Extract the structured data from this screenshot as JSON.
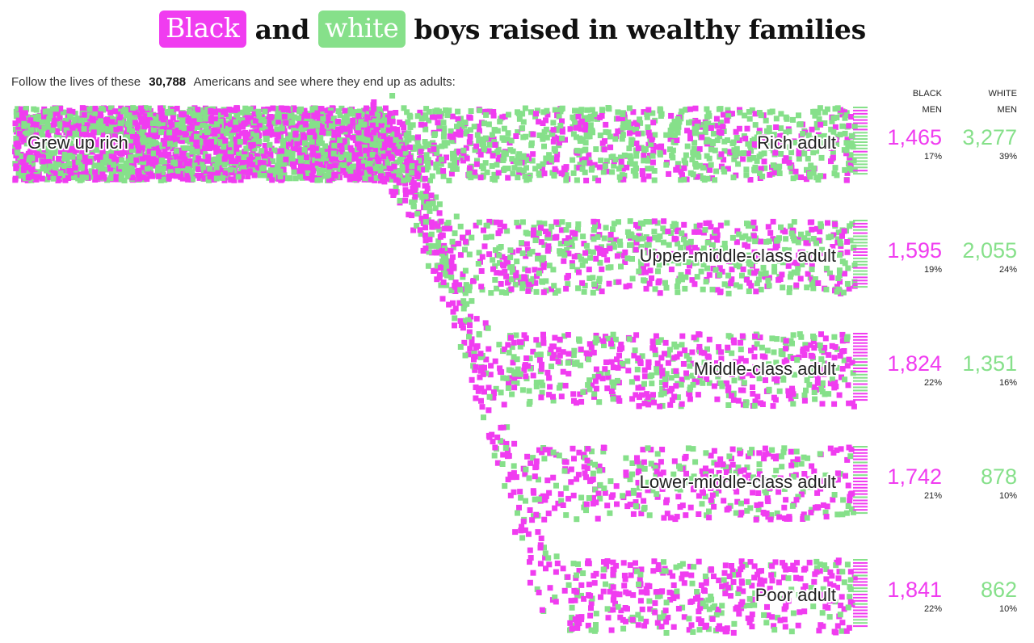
{
  "title": {
    "black_word": "Black",
    "and_word": "and",
    "white_word": "white",
    "rest": "boys raised in wealthy families"
  },
  "intro": {
    "before": "Follow the lives of these",
    "count": "30,788",
    "after": "Americans and see where they end up as adults:"
  },
  "colors": {
    "black": "#f03cf0",
    "white": "#86e08a"
  },
  "columns": {
    "black_line1": "BLACK",
    "black_line2": "MEN",
    "white_line1": "WHITE",
    "white_line2": "MEN"
  },
  "chart_data": {
    "type": "flow",
    "source": "Grew up rich",
    "groups": [
      "Black men",
      "White men"
    ],
    "outcomes": [
      {
        "label": "Rich adult",
        "black": 1465,
        "black_label": "1,465",
        "black_pct": "17%",
        "white": 3277,
        "white_label": "3,277",
        "white_pct": "39%"
      },
      {
        "label": "Upper-middle-class adult",
        "black": 1595,
        "black_label": "1,595",
        "black_pct": "19%",
        "white": 2055,
        "white_label": "2,055",
        "white_pct": "24%"
      },
      {
        "label": "Middle-class adult",
        "black": 1824,
        "black_label": "1,824",
        "black_pct": "22%",
        "white": 1351,
        "white_label": "1,351",
        "white_pct": "16%"
      },
      {
        "label": "Lower-middle-class adult",
        "black": 1742,
        "black_label": "1,742",
        "black_pct": "21%",
        "white": 878,
        "white_label": "878",
        "white_pct": "10%"
      },
      {
        "label": "Poor adult",
        "black": 1841,
        "black_label": "1,841",
        "black_pct": "22%",
        "white": 862,
        "white_label": "862",
        "white_pct": "10%"
      }
    ]
  }
}
